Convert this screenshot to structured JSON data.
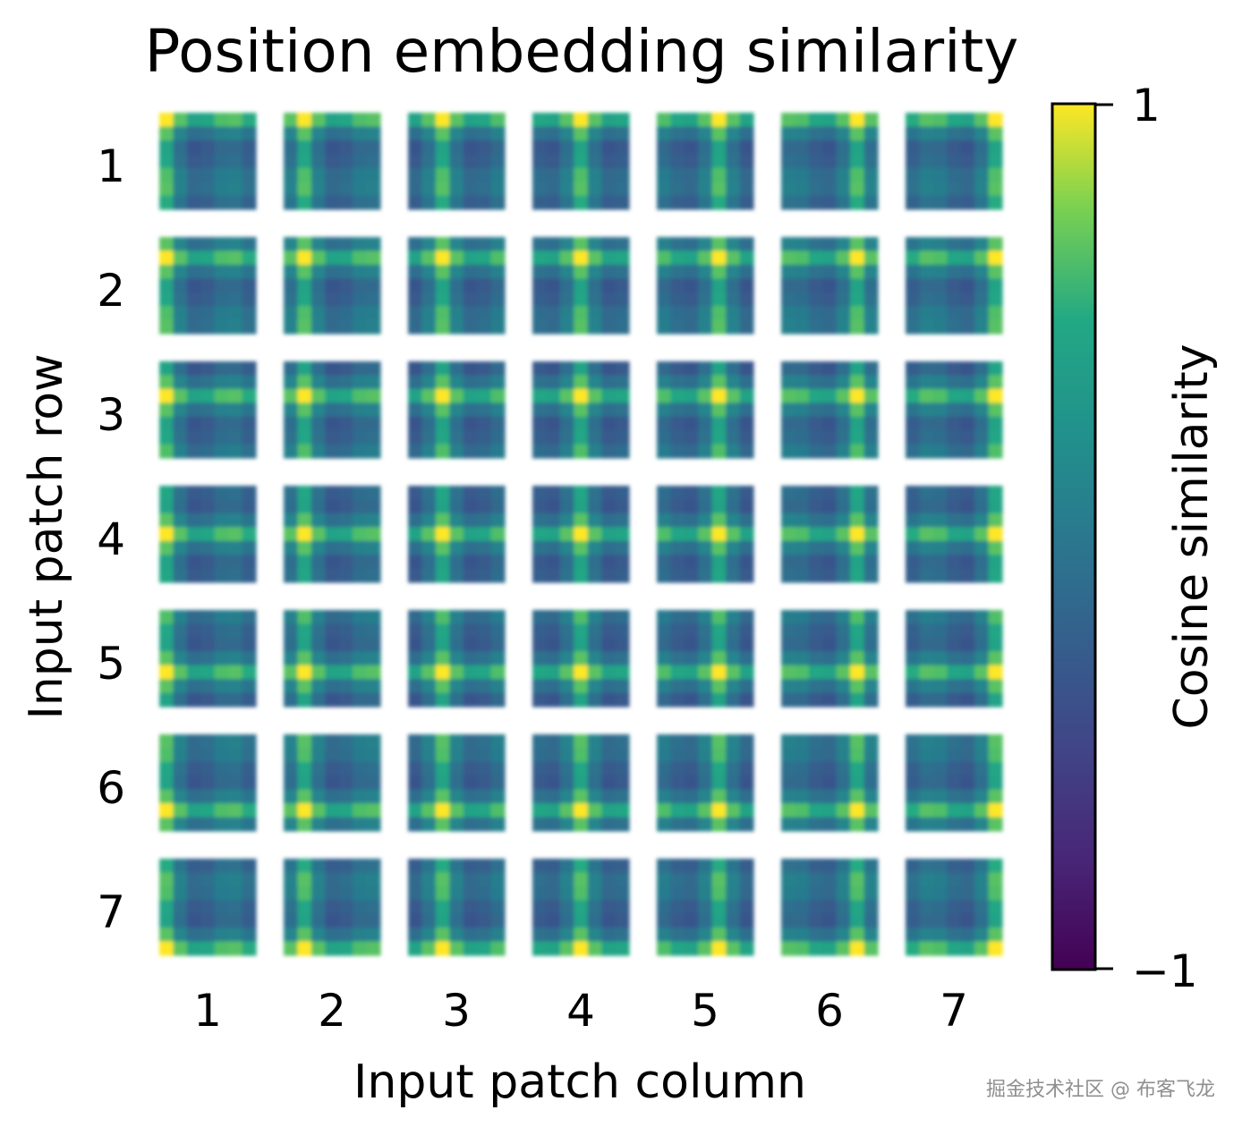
{
  "chart_data": {
    "type": "heatmap",
    "title": "Position embedding similarity",
    "xlabel": "Input patch column",
    "ylabel": "Input patch row",
    "rows": 7,
    "cols": 7,
    "x_ticks": [
      "1",
      "2",
      "3",
      "4",
      "5",
      "6",
      "7"
    ],
    "y_ticks": [
      "1",
      "2",
      "3",
      "4",
      "5",
      "6",
      "7"
    ],
    "colorbar": {
      "label": "Cosine similarity",
      "min": -1,
      "max": 1,
      "tick_labels": [
        "1",
        "−1"
      ],
      "colormap": "viridis"
    },
    "cell_pattern": "each of the 7×7 subplots shows cosine similarity between the position embedding of patch (row, col) and all other 7×7 patches; peak value ≈1 at its own location, with elevated bands along the same row and column",
    "peak_value": 1.0,
    "same_row_or_column_value": 0.55,
    "other_value": 0.0
  },
  "watermark": "掘金技术社区 @ 布客飞龙"
}
